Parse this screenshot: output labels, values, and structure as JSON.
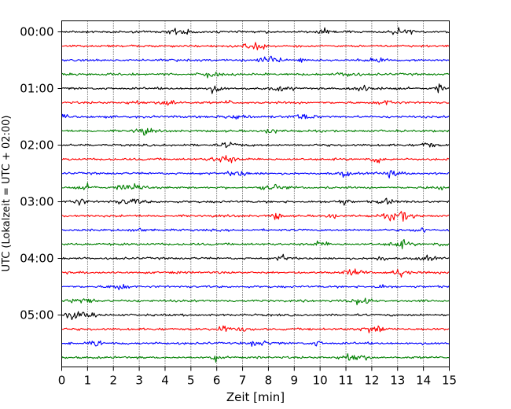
{
  "chart_data": {
    "type": "line",
    "title": "",
    "xlabel": "Zeit  [min]",
    "ylabel": "UTC (Lokalzeit = UTC + 02:00)",
    "xlim": [
      0,
      15
    ],
    "x_ticks": [
      "0",
      "1",
      "2",
      "3",
      "4",
      "5",
      "6",
      "7",
      "8",
      "9",
      "10",
      "11",
      "12",
      "13",
      "14",
      "15"
    ],
    "y_ticks": [
      "00:00",
      "01:00",
      "02:00",
      "03:00",
      "04:00",
      "05:00"
    ],
    "grid": "vertical-dotted",
    "trace_interval_minutes": 15,
    "trace_count": 24,
    "trace_start_utc": "00:00",
    "color_cycle": [
      "#000000",
      "#ff0000",
      "#0000ff",
      "#008000"
    ],
    "frame_color": "#000000",
    "grid_color": "#000000"
  }
}
